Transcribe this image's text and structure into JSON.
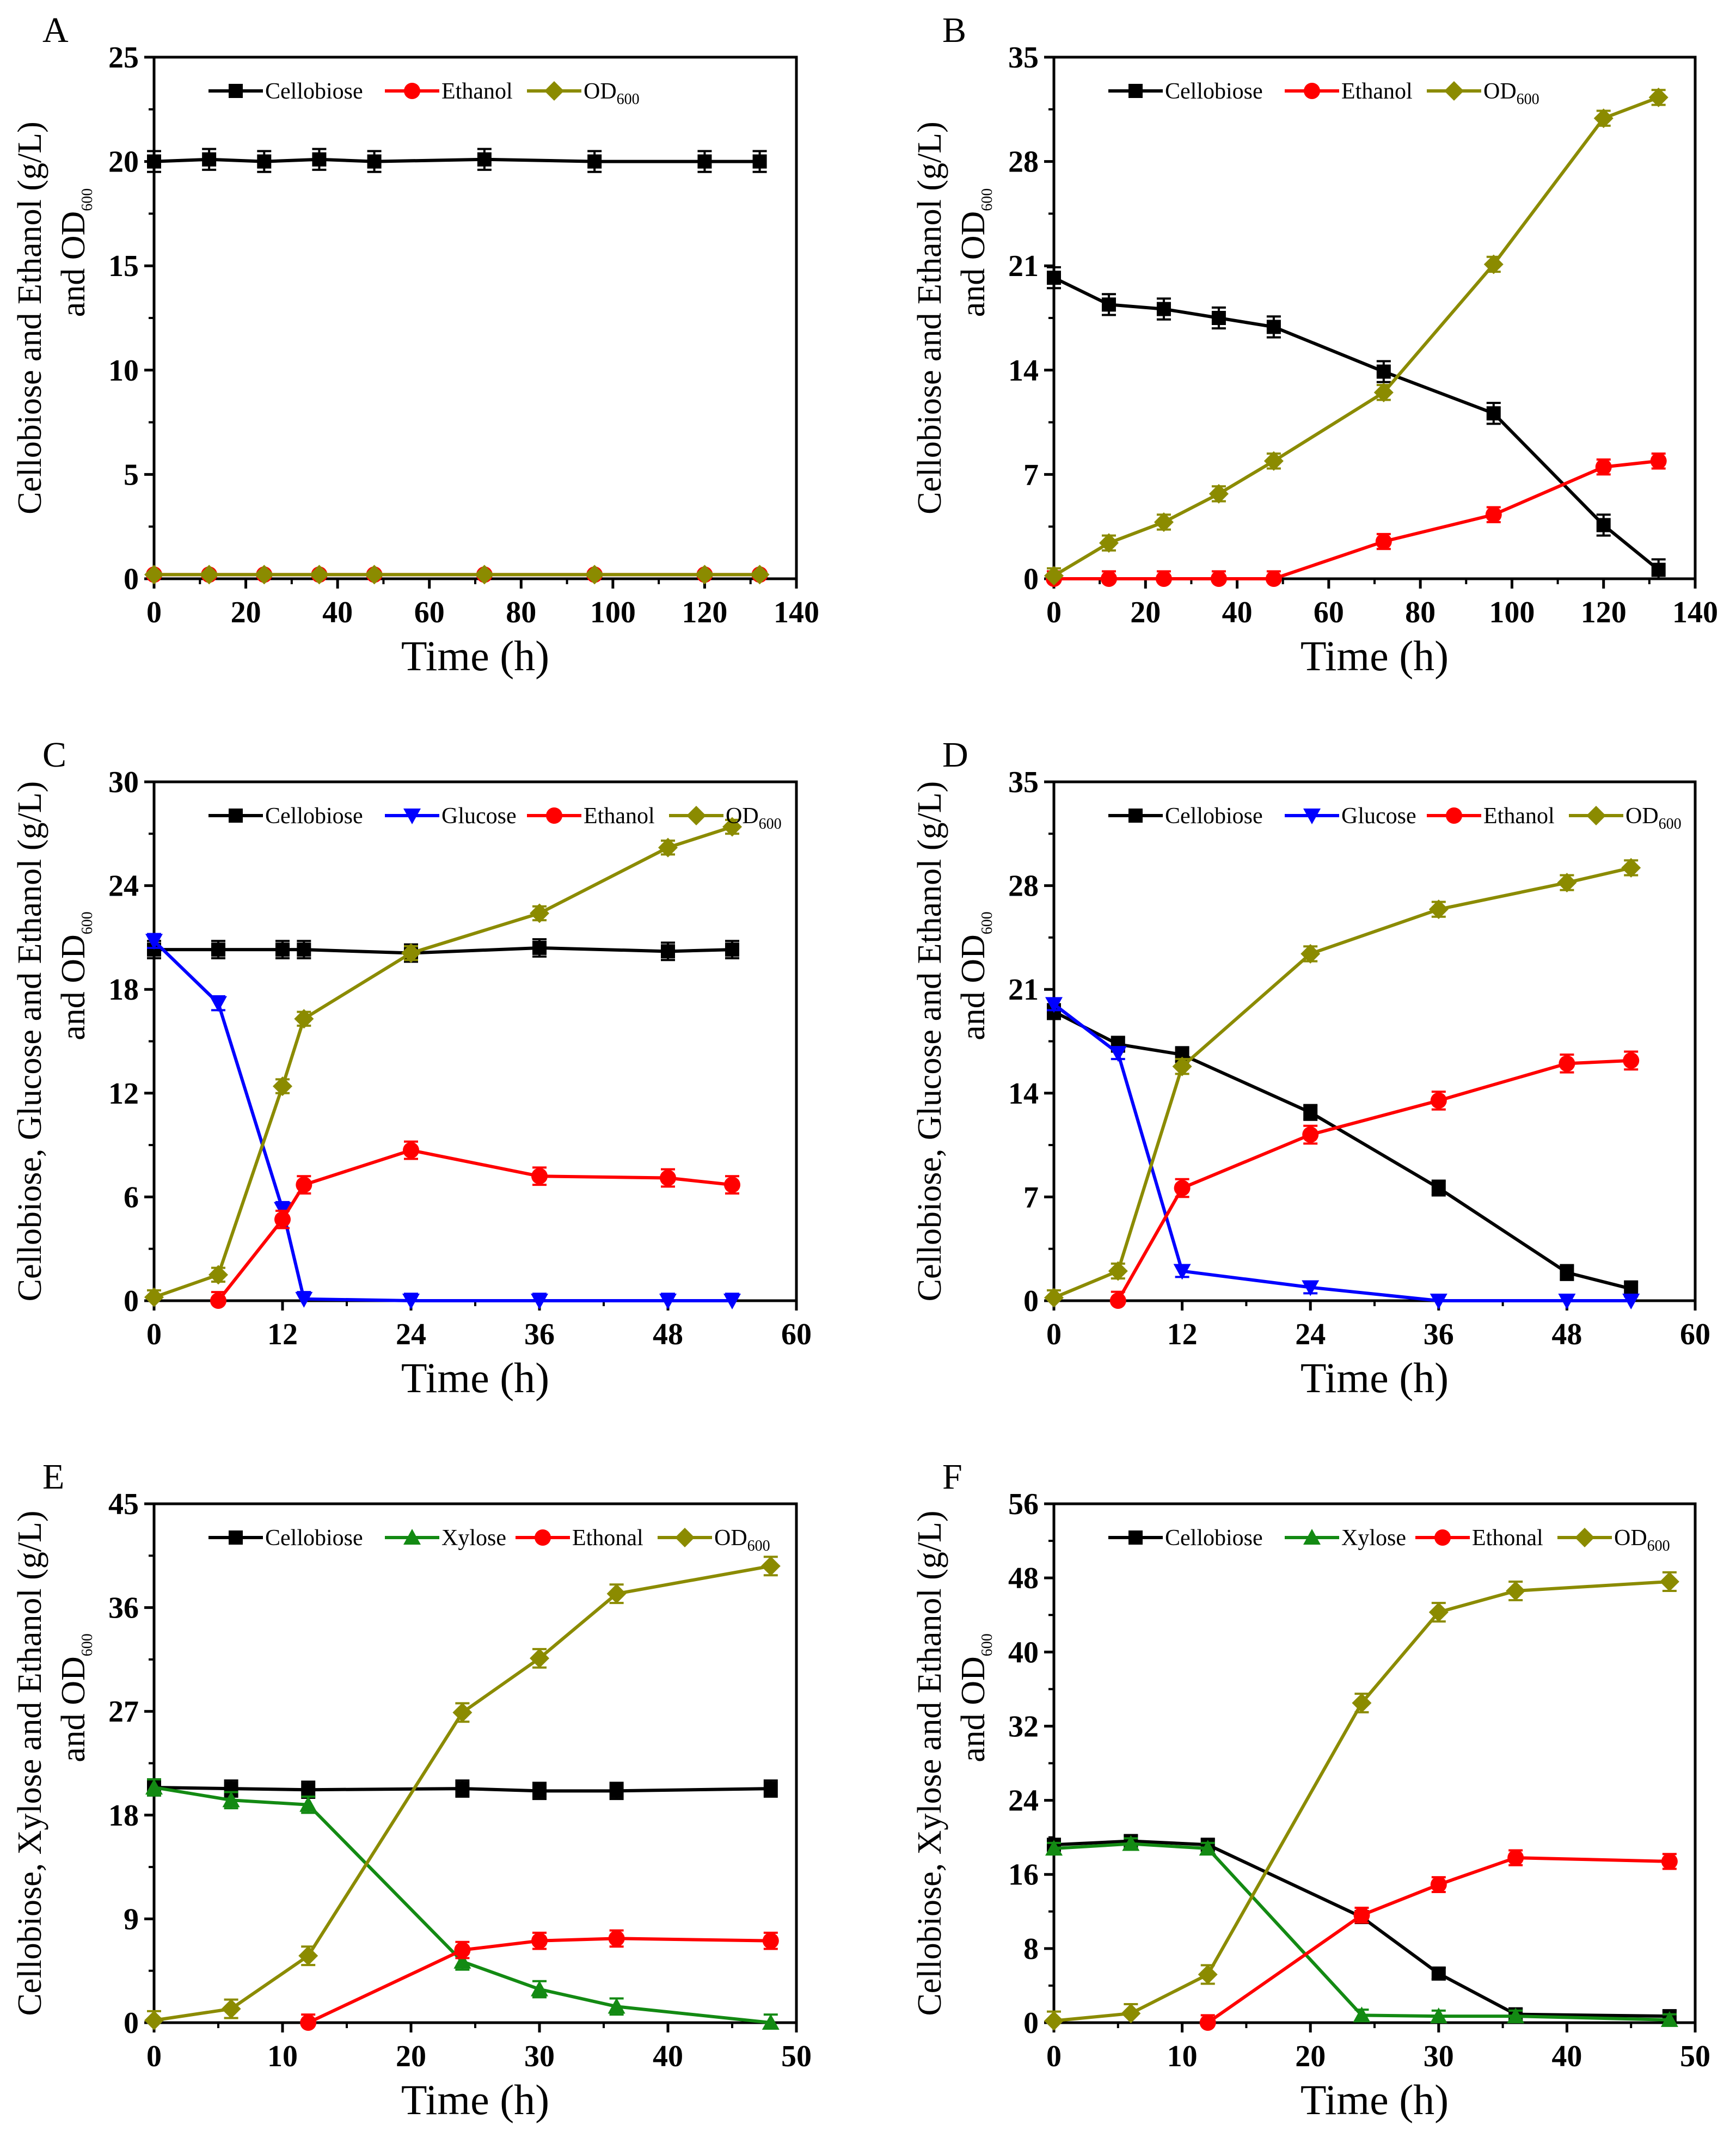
{
  "colors": {
    "Cellobiose": "#000000",
    "Glucose": "#0000ff",
    "Xylose": "#138a13",
    "Ethanol": "#ff0000",
    "Ethonal": "#ff0000",
    "OD": "#8b8b00"
  },
  "chart_data": [
    {
      "panel": "A",
      "type": "line",
      "xlabel": "Time (h)",
      "ylabel": [
        "Cellobiose and Ethanol (g/L)",
        "and OD"
      ],
      "ylabel_sub": "600",
      "xlim": [
        0,
        140
      ],
      "xticks": [
        0,
        20,
        40,
        60,
        80,
        100,
        120,
        140
      ],
      "ylim": [
        0,
        25
      ],
      "yticks": [
        0,
        5,
        10,
        15,
        20,
        25
      ],
      "x": [
        0,
        12,
        24,
        36,
        48,
        72,
        96,
        120,
        132
      ],
      "series": [
        {
          "name": "Cellobiose",
          "marker": "square",
          "color_key": "Cellobiose",
          "values": [
            20.0,
            20.1,
            20.0,
            20.1,
            20.0,
            20.1,
            20.0,
            20.0,
            20.0
          ],
          "err": 0.5
        },
        {
          "name": "Ethanol",
          "marker": "circle",
          "color_key": "Ethanol",
          "values": [
            0.2,
            0.2,
            0.2,
            0.2,
            0.2,
            0.2,
            0.2,
            0.2,
            0.2
          ],
          "err": 0
        },
        {
          "name": "OD",
          "sub": "600",
          "marker": "diamond",
          "color_key": "OD",
          "values": [
            0.2,
            0.2,
            0.2,
            0.2,
            0.2,
            0.2,
            0.2,
            0.2,
            0.2
          ],
          "err": 0.05
        }
      ]
    },
    {
      "panel": "B",
      "type": "line",
      "xlabel": "Time (h)",
      "ylabel": [
        "Cellobiose and Ethanol (g/L)",
        "and OD"
      ],
      "ylabel_sub": "600",
      "xlim": [
        0,
        140
      ],
      "xticks": [
        0,
        20,
        40,
        60,
        80,
        100,
        120,
        140
      ],
      "ylim": [
        0,
        35
      ],
      "yticks": [
        0,
        7,
        14,
        21,
        28,
        35
      ],
      "x": [
        0,
        12,
        24,
        36,
        48,
        72,
        96,
        120,
        132
      ],
      "series": [
        {
          "name": "Cellobiose",
          "marker": "square",
          "color_key": "Cellobiose",
          "values": [
            20.2,
            18.4,
            18.1,
            17.5,
            16.9,
            13.9,
            11.1,
            3.6,
            0.6
          ],
          "err": 0.7
        },
        {
          "name": "Ethanol",
          "marker": "circle",
          "color_key": "Ethanol",
          "values": [
            0,
            0,
            0,
            0,
            0,
            2.5,
            4.3,
            7.5,
            7.9
          ],
          "err": 0.5
        },
        {
          "name": "OD",
          "sub": "600",
          "marker": "diamond",
          "color_key": "OD",
          "values": [
            0.2,
            2.4,
            3.8,
            5.7,
            7.9,
            12.5,
            21.1,
            30.9,
            32.3
          ],
          "err": 0.5
        }
      ]
    },
    {
      "panel": "C",
      "type": "line",
      "xlabel": "Time (h)",
      "ylabel": [
        "Cellobiose, Glucose and Ethanol (g/L)",
        "and OD"
      ],
      "ylabel_sub": "600",
      "xlim": [
        0,
        60
      ],
      "xticks": [
        0,
        12,
        24,
        36,
        48,
        60
      ],
      "ylim": [
        0,
        30
      ],
      "yticks": [
        0,
        6,
        12,
        18,
        24,
        30
      ],
      "x": [
        0,
        6,
        12,
        14,
        24,
        36,
        48,
        54
      ],
      "series": [
        {
          "name": "Cellobiose",
          "marker": "square",
          "color_key": "Cellobiose",
          "values": [
            20.3,
            20.3,
            20.3,
            20.3,
            20.1,
            20.4,
            20.2,
            20.3
          ],
          "err": 0.5
        },
        {
          "name": "Glucose",
          "marker": "tri-down",
          "color_key": "Glucose",
          "values": [
            20.8,
            17.2,
            5.3,
            0.1,
            0,
            0,
            0,
            0
          ],
          "err": 0.4
        },
        {
          "name": "Ethanol",
          "marker": "circle",
          "color_key": "Ethanol",
          "values": [
            null,
            0,
            4.7,
            6.7,
            8.7,
            7.2,
            7.1,
            6.7
          ],
          "err": 0.5
        },
        {
          "name": "OD",
          "sub": "600",
          "marker": "diamond",
          "color_key": "OD",
          "values": [
            0.2,
            1.5,
            12.4,
            16.3,
            20.1,
            22.4,
            26.2,
            27.4
          ],
          "err": 0.4
        }
      ]
    },
    {
      "panel": "D",
      "type": "line",
      "xlabel": "Time (h)",
      "ylabel": [
        "Cellobiose, Glucose and Ethanol (g/L)",
        "and OD"
      ],
      "ylabel_sub": "600",
      "xlim": [
        0,
        60
      ],
      "xticks": [
        0,
        12,
        24,
        36,
        48,
        60
      ],
      "ylim": [
        0,
        35
      ],
      "yticks": [
        0,
        7,
        14,
        21,
        28,
        35
      ],
      "x": [
        0,
        6,
        12,
        24,
        36,
        48,
        54
      ],
      "series": [
        {
          "name": "Cellobiose",
          "marker": "square",
          "color_key": "Cellobiose",
          "values": [
            19.5,
            17.3,
            16.6,
            12.7,
            7.6,
            1.9,
            0.8
          ],
          "err": 0.5
        },
        {
          "name": "Glucose",
          "marker": "tri-down",
          "color_key": "Glucose",
          "values": [
            20.0,
            16.7,
            2.0,
            0.9,
            0,
            0,
            0
          ],
          "err": 0.4
        },
        {
          "name": "Ethanol",
          "marker": "circle",
          "color_key": "Ethanol",
          "values": [
            null,
            0,
            7.6,
            11.2,
            13.5,
            16.0,
            16.2
          ],
          "err": 0.6
        },
        {
          "name": "OD",
          "sub": "600",
          "marker": "diamond",
          "color_key": "OD",
          "values": [
            0.2,
            2.0,
            15.8,
            23.4,
            26.4,
            28.2,
            29.2
          ],
          "err": 0.5
        }
      ]
    },
    {
      "panel": "E",
      "type": "line",
      "xlabel": "Time (h)",
      "ylabel": [
        "Cellobiose, Xylose and Ethanol (g/L)",
        "and OD"
      ],
      "ylabel_sub": "600",
      "xlim": [
        0,
        50
      ],
      "xticks": [
        0,
        10,
        20,
        30,
        40,
        50
      ],
      "ylim": [
        0,
        45
      ],
      "yticks": [
        0,
        9,
        18,
        27,
        36,
        45
      ],
      "x": [
        0,
        6,
        12,
        24,
        30,
        36,
        48
      ],
      "series": [
        {
          "name": "Cellobiose",
          "marker": "square",
          "color_key": "Cellobiose",
          "values": [
            20.4,
            20.3,
            20.2,
            20.3,
            20.1,
            20.1,
            20.3
          ],
          "err": 0.7
        },
        {
          "name": "Xylose",
          "marker": "tri-up",
          "color_key": "Xylose",
          "values": [
            20.4,
            19.3,
            18.9,
            5.3,
            2.9,
            1.4,
            0
          ],
          "err": 0.7
        },
        {
          "name": "Ethonal",
          "marker": "circle",
          "color_key": "Ethonal",
          "values": [
            null,
            null,
            0,
            6.3,
            7.1,
            7.3,
            7.1
          ],
          "err": 0.7
        },
        {
          "name": "OD",
          "sub": "600",
          "marker": "diamond",
          "color_key": "OD",
          "values": [
            0.2,
            1.2,
            5.8,
            26.9,
            31.6,
            37.2,
            39.6
          ],
          "err": 0.8
        }
      ]
    },
    {
      "panel": "F",
      "type": "line",
      "xlabel": "Time (h)",
      "ylabel": [
        "Cellobiose, Xylose and Ethanol (g/L)",
        "and OD"
      ],
      "ylabel_sub": "600",
      "xlim": [
        0,
        50
      ],
      "xticks": [
        0,
        10,
        20,
        30,
        40,
        50
      ],
      "ylim": [
        0,
        56
      ],
      "yticks": [
        0,
        8,
        16,
        24,
        32,
        40,
        48,
        56
      ],
      "x": [
        0,
        6,
        12,
        24,
        30,
        36,
        48
      ],
      "series": [
        {
          "name": "Cellobiose",
          "marker": "square",
          "color_key": "Cellobiose",
          "values": [
            19.2,
            19.6,
            19.2,
            11.4,
            5.3,
            0.9,
            0.7
          ],
          "err": 0.6
        },
        {
          "name": "Xylose",
          "marker": "tri-up",
          "color_key": "Xylose",
          "values": [
            18.8,
            19.3,
            18.8,
            0.8,
            0.7,
            0.7,
            0.3
          ],
          "err": 0.6
        },
        {
          "name": "Ethonal",
          "marker": "circle",
          "color_key": "Ethonal",
          "values": [
            null,
            null,
            0,
            11.6,
            14.9,
            17.8,
            17.4
          ],
          "err": 0.8
        },
        {
          "name": "OD",
          "sub": "600",
          "marker": "diamond",
          "color_key": "OD",
          "values": [
            0.2,
            1.0,
            5.2,
            34.5,
            44.3,
            46.6,
            47.6
          ],
          "err": 1.0
        }
      ]
    }
  ]
}
